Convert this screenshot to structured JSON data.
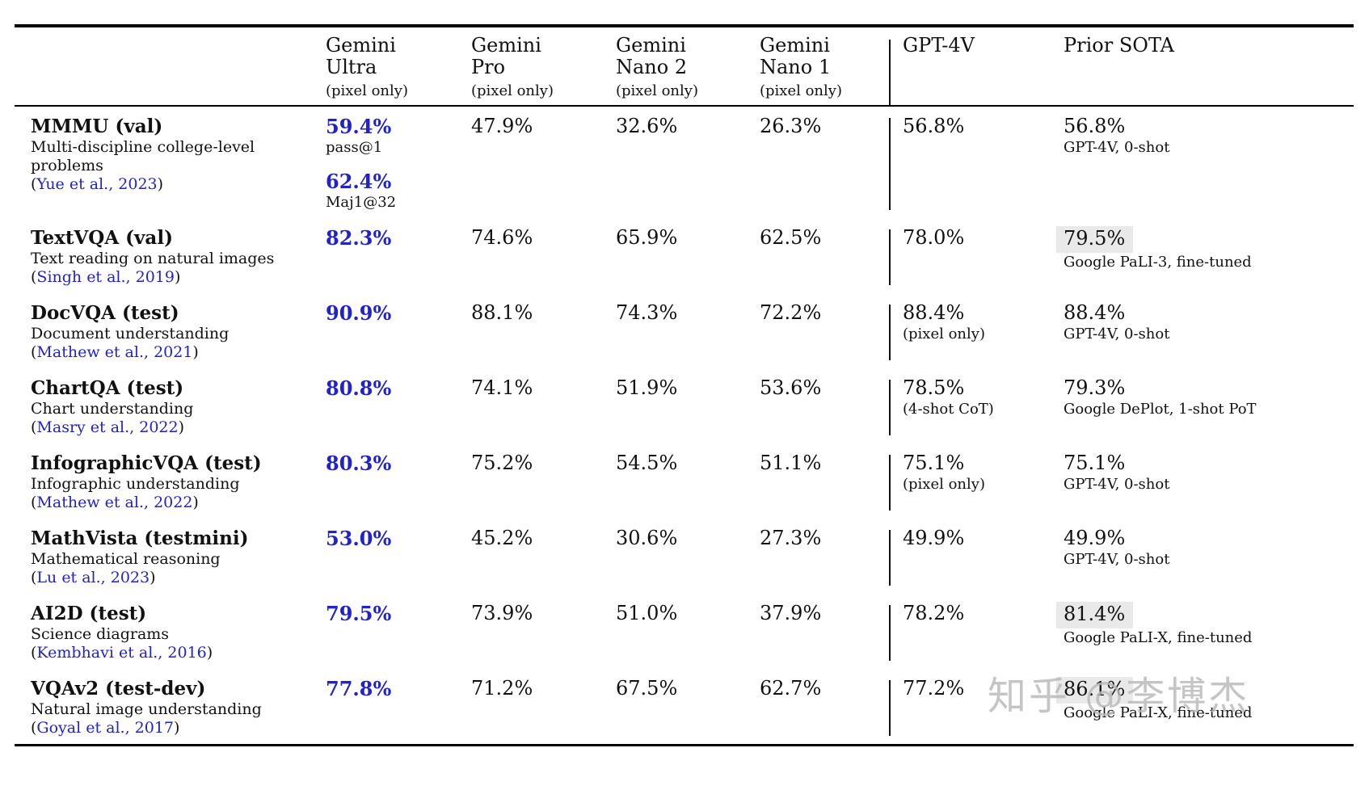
{
  "meta": {
    "accent_blue": "#2222cc",
    "highlight_gray": "#e9e9e9"
  },
  "watermark": "知乎 @李博杰",
  "columns": [
    {
      "name": "Gemini Ultra",
      "note": "(pixel only)"
    },
    {
      "name": "Gemini Pro",
      "note": "(pixel only)"
    },
    {
      "name": "Gemini Nano 2",
      "note": "(pixel only)"
    },
    {
      "name": "Gemini Nano 1",
      "note": "(pixel only)"
    },
    {
      "name": "GPT-4V"
    },
    {
      "name": "Prior SOTA"
    }
  ],
  "rows": [
    {
      "benchmark": "MMMU (val)",
      "description": "Multi-discipline college-level problems",
      "citation": "Yue et al., 2023",
      "cells": [
        {
          "entries": [
            {
              "value": "59.4%",
              "note": "pass@1"
            },
            {
              "value": "62.4%",
              "note": "Maj1@32"
            }
          ]
        },
        {
          "entries": [
            {
              "value": "47.9%"
            }
          ]
        },
        {
          "entries": [
            {
              "value": "32.6%"
            }
          ]
        },
        {
          "entries": [
            {
              "value": "26.3%"
            }
          ]
        },
        {
          "entries": [
            {
              "value": "56.8%"
            }
          ]
        },
        {
          "entries": [
            {
              "value": "56.8%",
              "note": "GPT-4V, 0-shot"
            }
          ]
        }
      ]
    },
    {
      "benchmark": "TextVQA (val)",
      "description": "Text reading on natural images",
      "citation": "Singh et al., 2019",
      "cells": [
        {
          "entries": [
            {
              "value": "82.3%"
            }
          ]
        },
        {
          "entries": [
            {
              "value": "74.6%"
            }
          ]
        },
        {
          "entries": [
            {
              "value": "65.9%"
            }
          ]
        },
        {
          "entries": [
            {
              "value": "62.5%"
            }
          ]
        },
        {
          "entries": [
            {
              "value": "78.0%"
            }
          ]
        },
        {
          "entries": [
            {
              "value": "79.5%",
              "note": "Google PaLI-3, fine-tuned",
              "highlight": true
            }
          ]
        }
      ]
    },
    {
      "benchmark": "DocVQA (test)",
      "description": "Document understanding",
      "citation": "Mathew et al., 2021",
      "cells": [
        {
          "entries": [
            {
              "value": "90.9%"
            }
          ]
        },
        {
          "entries": [
            {
              "value": "88.1%"
            }
          ]
        },
        {
          "entries": [
            {
              "value": "74.3%"
            }
          ]
        },
        {
          "entries": [
            {
              "value": "72.2%"
            }
          ]
        },
        {
          "entries": [
            {
              "value": "88.4%",
              "note": "(pixel only)"
            }
          ]
        },
        {
          "entries": [
            {
              "value": "88.4%",
              "note": "GPT-4V, 0-shot"
            }
          ]
        }
      ]
    },
    {
      "benchmark": "ChartQA (test)",
      "description": "Chart understanding",
      "citation": "Masry et al., 2022",
      "cells": [
        {
          "entries": [
            {
              "value": "80.8%"
            }
          ]
        },
        {
          "entries": [
            {
              "value": "74.1%"
            }
          ]
        },
        {
          "entries": [
            {
              "value": "51.9%"
            }
          ]
        },
        {
          "entries": [
            {
              "value": "53.6%"
            }
          ]
        },
        {
          "entries": [
            {
              "value": "78.5%",
              "note": "(4-shot CoT)"
            }
          ]
        },
        {
          "entries": [
            {
              "value": "79.3%",
              "note": "Google DePlot, 1-shot PoT"
            }
          ]
        }
      ]
    },
    {
      "benchmark": "InfographicVQA (test)",
      "description": "Infographic understanding",
      "citation": "Mathew et al., 2022",
      "cells": [
        {
          "entries": [
            {
              "value": "80.3%"
            }
          ]
        },
        {
          "entries": [
            {
              "value": "75.2%"
            }
          ]
        },
        {
          "entries": [
            {
              "value": "54.5%"
            }
          ]
        },
        {
          "entries": [
            {
              "value": "51.1%"
            }
          ]
        },
        {
          "entries": [
            {
              "value": "75.1%",
              "note": "(pixel only)"
            }
          ]
        },
        {
          "entries": [
            {
              "value": "75.1%",
              "note": "GPT-4V, 0-shot"
            }
          ]
        }
      ]
    },
    {
      "benchmark": "MathVista (testmini)",
      "description": "Mathematical reasoning",
      "citation": "Lu et al., 2023",
      "cells": [
        {
          "entries": [
            {
              "value": "53.0%"
            }
          ]
        },
        {
          "entries": [
            {
              "value": "45.2%"
            }
          ]
        },
        {
          "entries": [
            {
              "value": "30.6%"
            }
          ]
        },
        {
          "entries": [
            {
              "value": "27.3%"
            }
          ]
        },
        {
          "entries": [
            {
              "value": "49.9%"
            }
          ]
        },
        {
          "entries": [
            {
              "value": "49.9%",
              "note": "GPT-4V, 0-shot"
            }
          ]
        }
      ]
    },
    {
      "benchmark": "AI2D (test)",
      "description": "Science diagrams",
      "citation": "Kembhavi et al., 2016",
      "cells": [
        {
          "entries": [
            {
              "value": "79.5%"
            }
          ]
        },
        {
          "entries": [
            {
              "value": "73.9%"
            }
          ]
        },
        {
          "entries": [
            {
              "value": "51.0%"
            }
          ]
        },
        {
          "entries": [
            {
              "value": "37.9%"
            }
          ]
        },
        {
          "entries": [
            {
              "value": "78.2%"
            }
          ]
        },
        {
          "entries": [
            {
              "value": "81.4%",
              "note": "Google PaLI-X, fine-tuned",
              "highlight": true
            }
          ]
        }
      ]
    },
    {
      "benchmark": "VQAv2 (test-dev)",
      "description": "Natural image understanding",
      "citation": "Goyal et al., 2017",
      "cells": [
        {
          "entries": [
            {
              "value": "77.8%"
            }
          ]
        },
        {
          "entries": [
            {
              "value": "71.2%"
            }
          ]
        },
        {
          "entries": [
            {
              "value": "67.5%"
            }
          ]
        },
        {
          "entries": [
            {
              "value": "62.7%"
            }
          ]
        },
        {
          "entries": [
            {
              "value": "77.2%"
            }
          ]
        },
        {
          "entries": [
            {
              "value": "86.1%",
              "note": "Google PaLI-X, fine-tuned",
              "highlight": true
            }
          ]
        }
      ]
    }
  ]
}
